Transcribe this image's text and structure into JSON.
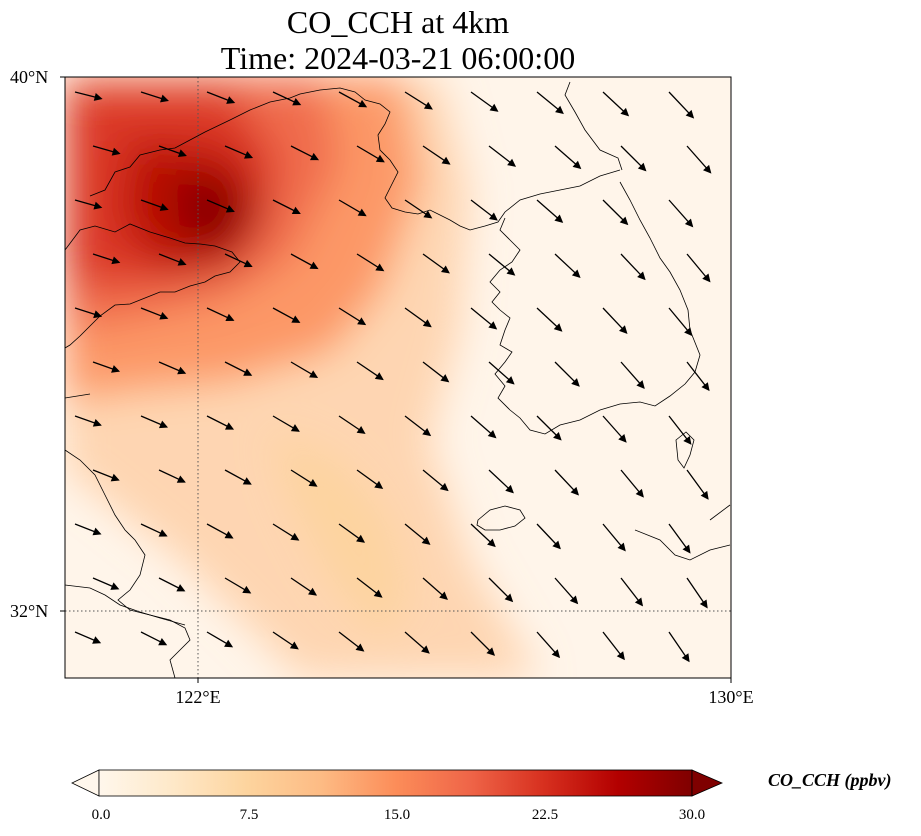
{
  "title": "CO_CCH at 4km",
  "subtitle": "Time: 2024-03-21 06:00:00",
  "map": {
    "lon_range": [
      120,
      130
    ],
    "lat_range": [
      31,
      40
    ],
    "gridlines": {
      "lon": [
        122
      ],
      "lat": [
        32
      ]
    },
    "lat_ticks": [
      {
        "value": 40,
        "label": "40°N"
      },
      {
        "value": 32,
        "label": "32°N"
      }
    ],
    "lon_ticks": [
      {
        "value": 122,
        "label": "122°E"
      },
      {
        "value": 130,
        "label": "130°E"
      }
    ],
    "field": "CO_CCH",
    "units": "ppbv",
    "wind_direction": "northwest to southeast"
  },
  "colorbar": {
    "label": "CO_CCH (ppbv)",
    "colormap": "OrRd",
    "range": [
      0,
      30
    ],
    "extend": "both",
    "ticks": [
      "0.0",
      "7.5",
      "15.0",
      "22.5",
      "30.0"
    ],
    "colors": [
      "#fff7ec",
      "#fee8c8",
      "#fdd49e",
      "#fdbb84",
      "#fc8d59",
      "#ef6548",
      "#d7301f",
      "#b30000",
      "#7f0000"
    ]
  }
}
